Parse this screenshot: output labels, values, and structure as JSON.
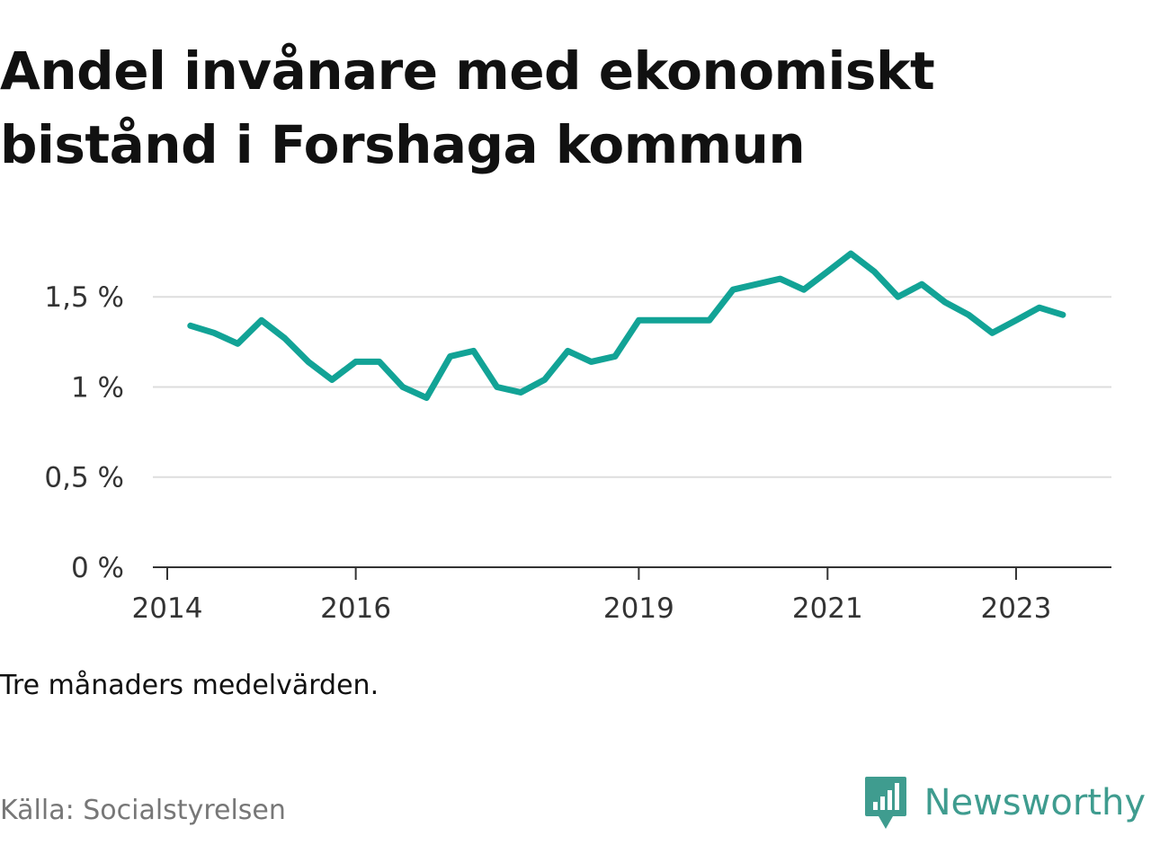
{
  "title": "Andel invånare med ekonomiskt bistånd i Forshaga kommun",
  "note": "Tre månaders medelvärden.",
  "source": "Källa: Socialstyrelsen",
  "brand": {
    "name": "Newsworthy",
    "icon": "newsworthy-logo-icon",
    "color": "#3f9c8f"
  },
  "chart_data": {
    "type": "line",
    "title": "Andel invånare med ekonomiskt bistånd i Forshaga kommun",
    "xlabel": "",
    "ylabel": "",
    "ylim": [
      0,
      1.85
    ],
    "xlim": [
      "2014-01-01",
      "2024-03-01"
    ],
    "grid": true,
    "legend": "none",
    "color": "#12a396",
    "y_ticks": [
      {
        "value": 0,
        "label": "0 %"
      },
      {
        "value": 0.5,
        "label": "0,5 %"
      },
      {
        "value": 1,
        "label": "1 %"
      },
      {
        "value": 1.5,
        "label": "1,5 %"
      }
    ],
    "x_ticks": [
      {
        "date": "2014-01-01",
        "label": "2014"
      },
      {
        "date": "2016-01-01",
        "label": "2016"
      },
      {
        "date": "2019-01-01",
        "label": "2019"
      },
      {
        "date": "2021-01-01",
        "label": "2021"
      },
      {
        "date": "2023-01-01",
        "label": "2023"
      }
    ],
    "series": [
      {
        "x": [
          "2014-04-01",
          "2014-07-01",
          "2014-10-01",
          "2015-01-01",
          "2015-04-01",
          "2015-07-01",
          "2015-10-01",
          "2016-01-01",
          "2016-04-01",
          "2016-07-01",
          "2016-10-01",
          "2017-01-01",
          "2017-04-01",
          "2017-07-01",
          "2017-10-01",
          "2018-01-01",
          "2018-04-01",
          "2018-07-01",
          "2018-10-01",
          "2019-01-01",
          "2019-04-01",
          "2019-07-01",
          "2019-10-01",
          "2020-01-01",
          "2020-04-01",
          "2020-07-01",
          "2020-10-01",
          "2021-01-01",
          "2021-04-01",
          "2021-07-01",
          "2021-10-01",
          "2022-01-01",
          "2022-04-01",
          "2022-07-01",
          "2022-10-01",
          "2023-01-01",
          "2023-04-01",
          "2023-07-01"
        ],
        "values": [
          1.34,
          1.3,
          1.24,
          1.37,
          1.27,
          1.14,
          1.04,
          1.14,
          1.14,
          1.0,
          0.94,
          1.17,
          1.2,
          1.0,
          0.97,
          1.04,
          1.2,
          1.14,
          1.17,
          1.37,
          1.37,
          1.37,
          1.37,
          1.54,
          1.57,
          1.6,
          1.54,
          1.64,
          1.74,
          1.64,
          1.5,
          1.57,
          1.47,
          1.4,
          1.3,
          1.37,
          1.44,
          1.4
        ]
      }
    ]
  }
}
